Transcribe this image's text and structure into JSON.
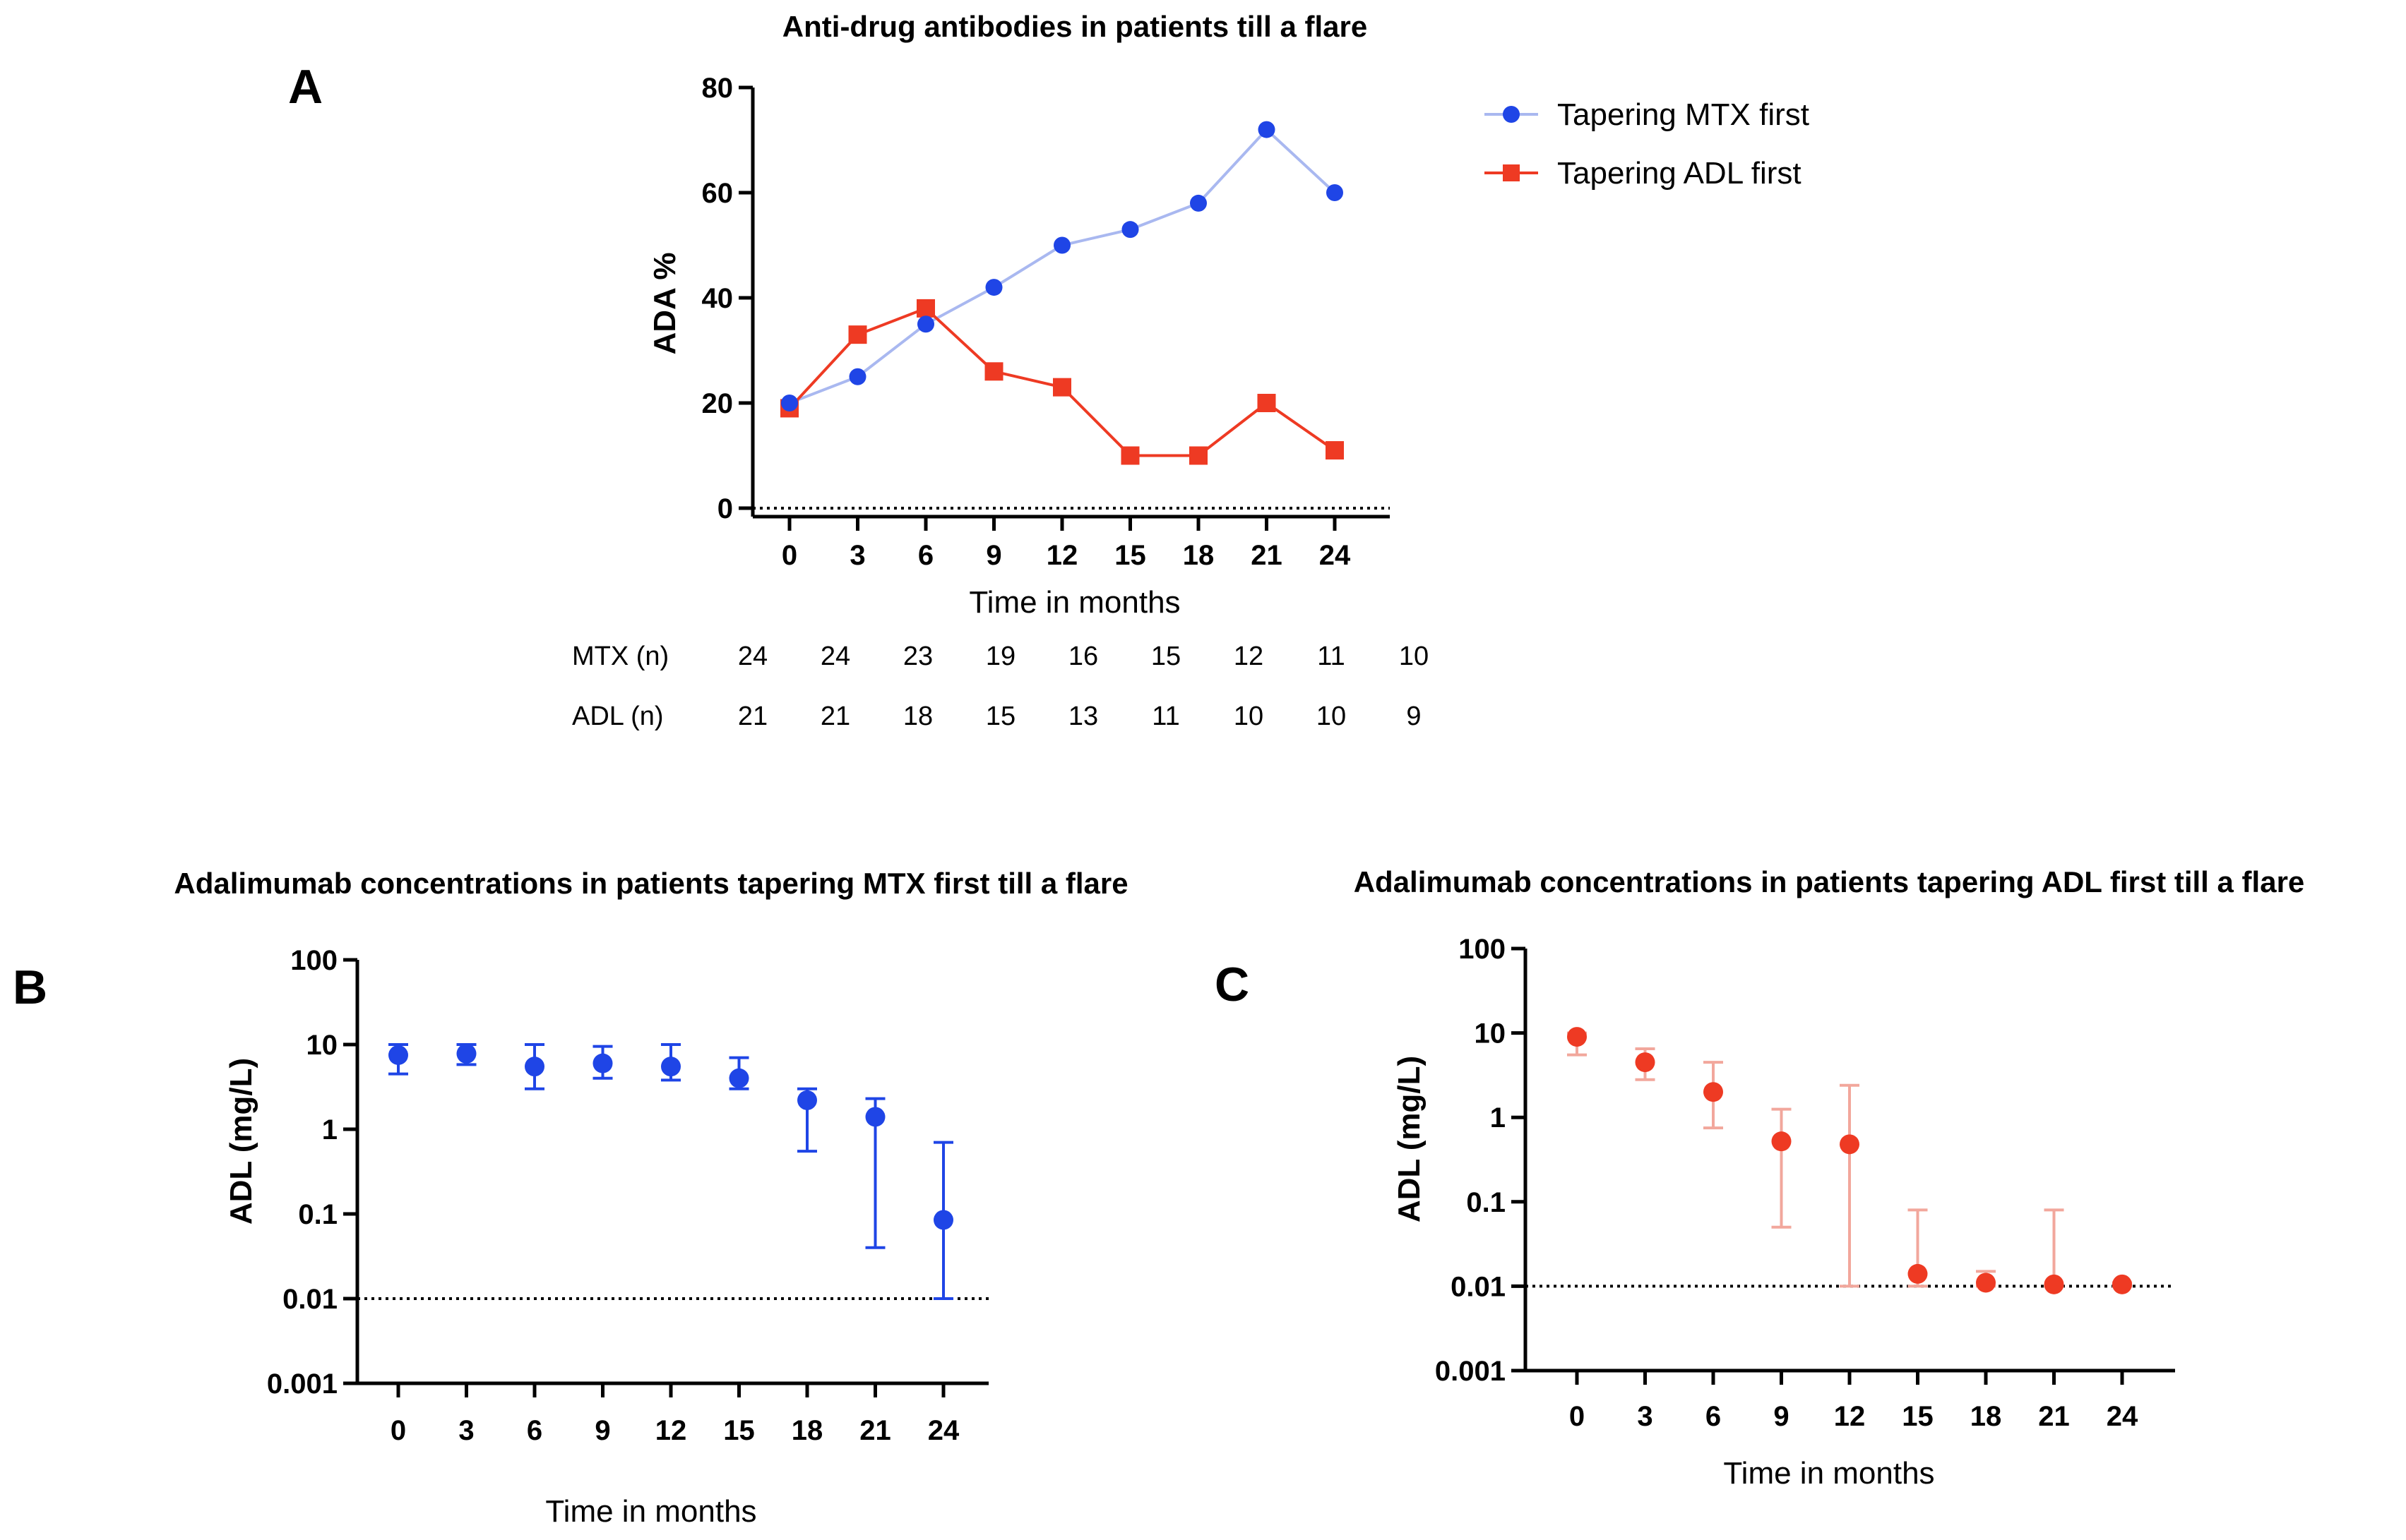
{
  "colors": {
    "mtx": "#1f45e6",
    "mtx_line": "#a9b8f0",
    "adl": "#ee3a23",
    "adl_err": "#f2a79c"
  },
  "chart_data": [
    {
      "id": "A",
      "panel_label": "A",
      "type": "line",
      "title": "Anti-drug antibodies in patients till a flare",
      "xlabel": "Time in months",
      "ylabel": "ADA %",
      "categories": [
        "0",
        "3",
        "6",
        "9",
        "12",
        "15",
        "18",
        "21",
        "24"
      ],
      "yticks": [
        "0",
        "20",
        "40",
        "60",
        "80"
      ],
      "ylim": [
        0,
        80
      ],
      "series": [
        {
          "name": "Tapering MTX first",
          "marker": "circle",
          "values": [
            20,
            25,
            35,
            42,
            50,
            53,
            58,
            72,
            60
          ]
        },
        {
          "name": "Tapering ADL first",
          "marker": "square",
          "values": [
            19,
            33,
            38,
            26,
            23,
            10,
            10,
            20,
            11
          ]
        }
      ],
      "n_table": [
        {
          "label": "MTX (n)",
          "values": [
            "24",
            "24",
            "23",
            "19",
            "16",
            "15",
            "12",
            "11",
            "10"
          ]
        },
        {
          "label": "ADL (n)",
          "values": [
            "21",
            "21",
            "18",
            "15",
            "13",
            "11",
            "10",
            "10",
            "9"
          ]
        }
      ]
    },
    {
      "id": "B",
      "panel_label": "B",
      "type": "scatter",
      "title": "Adalimumab concentrations in patients tapering MTX first till a flare",
      "xlabel": "Time in months",
      "ylabel": "ADL (mg/L)",
      "yscale": "log",
      "ylim": [
        0.001,
        100
      ],
      "yticks": [
        "0.001",
        "0.01",
        "0.1",
        "1",
        "10",
        "100"
      ],
      "reference_line": 0.01,
      "categories": [
        "0",
        "3",
        "6",
        "9",
        "12",
        "15",
        "18",
        "21",
        "24"
      ],
      "values": [
        7.5,
        7.8,
        5.5,
        6.0,
        5.5,
        4.0,
        2.2,
        1.4,
        0.085
      ],
      "err_low": [
        4.5,
        5.8,
        3.0,
        4.0,
        3.8,
        3.0,
        0.55,
        0.04,
        0.01
      ],
      "err_high": [
        10,
        10,
        10,
        9.5,
        10,
        7,
        3.0,
        2.3,
        0.7
      ]
    },
    {
      "id": "C",
      "panel_label": "C",
      "type": "scatter",
      "title": "Adalimumab concentrations in patients tapering ADL first till a flare",
      "xlabel": "Time in months",
      "ylabel": "ADL (mg/L)",
      "yscale": "log",
      "ylim": [
        0.001,
        100
      ],
      "yticks": [
        "0.001",
        "0.01",
        "0.1",
        "1",
        "10",
        "100"
      ],
      "reference_line": 0.01,
      "categories": [
        "0",
        "3",
        "6",
        "9",
        "12",
        "15",
        "18",
        "21",
        "24"
      ],
      "values": [
        9.0,
        4.5,
        2.0,
        0.52,
        0.48,
        0.014,
        0.011,
        0.0105,
        0.0105
      ],
      "err_low": [
        5.5,
        2.8,
        0.75,
        0.05,
        0.01,
        0.01,
        0.01,
        0.01,
        0.01
      ],
      "err_high": [
        10,
        6.5,
        4.5,
        1.25,
        2.4,
        0.08,
        0.015,
        0.08,
        0.011
      ]
    }
  ]
}
